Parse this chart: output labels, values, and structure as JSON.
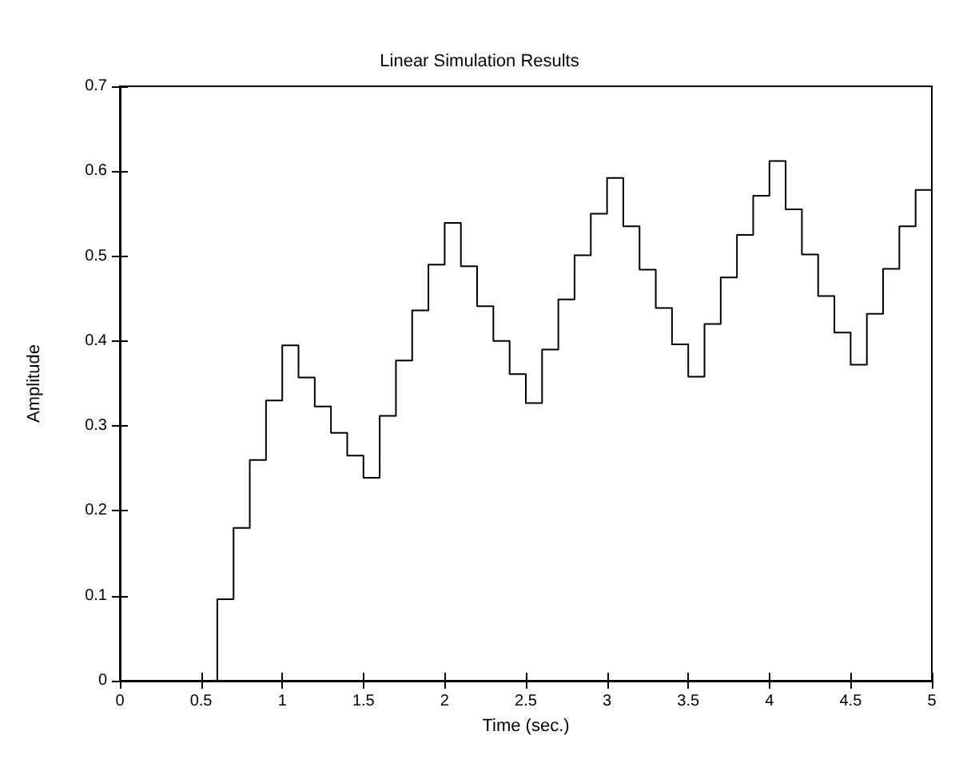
{
  "chart_data": {
    "type": "step",
    "title": "Linear Simulation Results",
    "xlabel": "Time (sec.)",
    "ylabel": "Amplitude",
    "x": [
      0,
      0.1,
      0.2,
      0.3,
      0.4,
      0.5,
      0.6,
      0.7,
      0.8,
      0.9,
      1.0,
      1.1,
      1.2,
      1.3,
      1.4,
      1.5,
      1.6,
      1.7,
      1.8,
      1.9,
      2.0,
      2.1,
      2.2,
      2.3,
      2.4,
      2.5,
      2.6,
      2.7,
      2.8,
      2.9,
      3.0,
      3.1,
      3.2,
      3.3,
      3.4,
      3.5,
      3.6,
      3.7,
      3.8,
      3.9,
      4.0,
      4.1,
      4.2,
      4.3,
      4.4,
      4.5,
      4.6,
      4.7,
      4.8,
      4.9,
      5.0
    ],
    "series": [
      {
        "color": "#000000",
        "values": [
          0,
          0,
          0,
          0,
          0,
          0,
          0.096,
          0.18,
          0.26,
          0.33,
          0.395,
          0.357,
          0.323,
          0.292,
          0.265,
          0.239,
          0.312,
          0.377,
          0.436,
          0.49,
          0.539,
          0.488,
          0.441,
          0.4,
          0.361,
          0.327,
          0.39,
          0.449,
          0.501,
          0.55,
          0.592,
          0.535,
          0.484,
          0.439,
          0.396,
          0.358,
          0.42,
          0.475,
          0.525,
          0.571,
          0.612,
          0.555,
          0.502,
          0.453,
          0.41,
          0.372,
          0.432,
          0.485,
          0.535,
          0.578,
          0.578
        ]
      }
    ],
    "xlim": [
      0,
      5
    ],
    "xticks": [
      0,
      0.5,
      1,
      1.5,
      2,
      2.5,
      3,
      3.5,
      4,
      4.5,
      5
    ],
    "ylim": [
      0,
      0.7
    ],
    "yticks": [
      0,
      0.1,
      0.2,
      0.3,
      0.4,
      0.5,
      0.6,
      0.7
    ],
    "grid": false,
    "marker": "none",
    "line_style": "solid"
  }
}
